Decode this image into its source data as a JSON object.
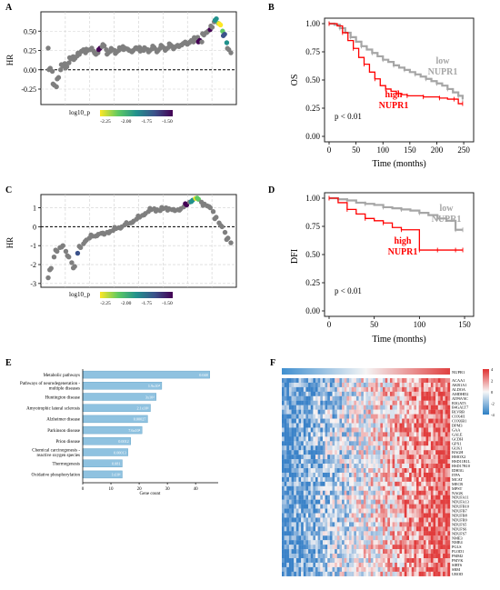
{
  "panels": {
    "A": {
      "letter": "A"
    },
    "B": {
      "letter": "B"
    },
    "C": {
      "letter": "C"
    },
    "D": {
      "letter": "D"
    },
    "E": {
      "letter": "E"
    },
    "F": {
      "letter": "F"
    }
  },
  "colorbar": {
    "title": "log10_p",
    "ticks": [
      "-2.25",
      "-2.00",
      "-1.75",
      "-1.50"
    ],
    "colors": [
      "#fde725",
      "#5ec962",
      "#21918c",
      "#3b528b",
      "#440154"
    ]
  },
  "chart_data": [
    {
      "id": "A",
      "type": "scatter",
      "ylabel": "HR",
      "ylim": [
        -0.45,
        0.75
      ],
      "yticks": [
        "0.50",
        "0.25",
        "0.00",
        "-0.25"
      ],
      "ytick_values": [
        0.5,
        0.25,
        0.0,
        -0.25
      ],
      "reference_line": 0,
      "points_y": [
        0.28,
        0.02,
        -0.02,
        -0.2,
        -0.22,
        -0.1,
        0.0,
        0.05,
        0.08,
        0.04,
        0.09,
        0.14,
        0.17,
        0.15,
        0.18,
        0.2,
        0.24,
        0.26,
        0.22,
        0.25,
        0.26,
        0.28,
        0.24,
        0.2,
        0.22,
        0.28,
        0.3,
        0.31,
        0.26,
        0.22,
        0.24,
        0.26,
        0.25,
        0.23,
        0.25,
        0.27,
        0.3,
        0.28,
        0.27,
        0.25,
        0.24,
        0.25,
        0.28,
        0.27,
        0.29,
        0.26,
        0.25,
        0.27,
        0.26,
        0.25,
        0.27,
        0.29,
        0.26,
        0.25,
        0.28,
        0.3,
        0.28,
        0.27,
        0.29,
        0.32,
        0.3,
        0.29,
        0.31,
        0.3,
        0.32,
        0.34,
        0.36,
        0.33,
        0.35,
        0.38,
        0.36,
        0.4,
        0.42,
        0.38,
        0.36,
        0.45,
        0.48,
        0.5,
        0.52,
        0.55,
        0.62,
        0.66,
        0.6,
        0.58,
        0.5,
        0.46,
        0.35,
        0.26,
        0.22
      ]
    },
    {
      "id": "B",
      "type": "line",
      "xlabel": "Time (months)",
      "ylabel": "OS",
      "xlim": [
        0,
        260
      ],
      "ylim": [
        0,
        1
      ],
      "xticks": [
        "0",
        "50",
        "100",
        "150",
        "200",
        "250"
      ],
      "xtick_values": [
        0,
        50,
        100,
        150,
        200,
        250
      ],
      "yticks": [
        "1.00",
        "0.75",
        "0.50",
        "0.25",
        "0.00"
      ],
      "ytick_values": [
        1,
        0.75,
        0.5,
        0.25,
        0
      ],
      "annotation": "p < 0.01",
      "series": [
        {
          "name": "low NUPR1",
          "label_lines": [
            "low",
            "NUPR1"
          ],
          "color": "#a6a6a6",
          "x": [
            0,
            10,
            20,
            30,
            40,
            50,
            60,
            70,
            80,
            90,
            100,
            110,
            120,
            130,
            140,
            150,
            160,
            170,
            180,
            190,
            200,
            210,
            220,
            230,
            240,
            248
          ],
          "y": [
            1,
            0.99,
            0.96,
            0.92,
            0.88,
            0.84,
            0.8,
            0.77,
            0.74,
            0.71,
            0.68,
            0.66,
            0.63,
            0.61,
            0.59,
            0.57,
            0.55,
            0.53,
            0.51,
            0.49,
            0.47,
            0.45,
            0.42,
            0.39,
            0.36,
            0.33
          ]
        },
        {
          "name": "high NUPR1",
          "label_lines": [
            "high",
            "NUPR1"
          ],
          "color": "#ff0000",
          "x": [
            0,
            15,
            25,
            35,
            45,
            55,
            65,
            75,
            85,
            95,
            105,
            115,
            125,
            135,
            145,
            160,
            175,
            190,
            205,
            220,
            232,
            240,
            248
          ],
          "y": [
            1,
            0.98,
            0.92,
            0.85,
            0.78,
            0.7,
            0.64,
            0.57,
            0.51,
            0.45,
            0.42,
            0.4,
            0.38,
            0.37,
            0.36,
            0.36,
            0.35,
            0.35,
            0.34,
            0.33,
            0.33,
            0.29,
            0.29
          ]
        }
      ]
    },
    {
      "id": "C",
      "type": "scatter",
      "ylabel": "HR",
      "ylim": [
        -3.2,
        1.7
      ],
      "yticks": [
        "1",
        "0",
        "-1",
        "-2",
        "-3"
      ],
      "ytick_values": [
        1,
        0,
        -1,
        -2,
        -3
      ],
      "reference_line": 0,
      "points_y": [
        -2.7,
        -2.2,
        -1.6,
        -1.3,
        -1.1,
        -1.0,
        -1.3,
        -1.6,
        -1.9,
        -2.1,
        -1.4,
        -1.1,
        -0.9,
        -0.7,
        -0.6,
        -0.5,
        -0.5,
        -0.4,
        -0.35,
        -0.4,
        -0.3,
        -0.25,
        -0.2,
        -0.1,
        -0.05,
        0.0,
        0.1,
        0.15,
        0.2,
        0.3,
        0.4,
        0.5,
        0.6,
        0.7,
        0.8,
        0.9,
        0.95,
        0.9,
        0.85,
        0.95,
        1.0,
        0.95,
        0.9,
        0.85,
        0.9,
        0.95,
        1.05,
        1.15,
        1.3,
        1.4,
        1.5,
        1.45,
        1.3,
        1.2,
        1.1,
        1.0,
        0.8,
        0.5,
        0.2,
        0.0,
        -0.3,
        -0.6,
        -0.85
      ]
    },
    {
      "id": "D",
      "type": "line",
      "xlabel": "Time (months)",
      "ylabel": "DFI",
      "xlim": [
        0,
        155
      ],
      "ylim": [
        0,
        1
      ],
      "xticks": [
        "0",
        "50",
        "100",
        "150"
      ],
      "xtick_values": [
        0,
        50,
        100,
        150
      ],
      "yticks": [
        "1.00",
        "0.75",
        "0.50",
        "0.25",
        "0.00"
      ],
      "ytick_values": [
        1,
        0.75,
        0.5,
        0.25,
        0
      ],
      "annotation": "p < 0.01",
      "series": [
        {
          "name": "low NUPR1",
          "label_lines": [
            "low",
            "NUPR1"
          ],
          "color": "#a6a6a6",
          "x": [
            0,
            10,
            20,
            30,
            40,
            50,
            60,
            70,
            80,
            90,
            100,
            110,
            120,
            130,
            140,
            148
          ],
          "y": [
            1,
            0.99,
            0.98,
            0.96,
            0.95,
            0.94,
            0.92,
            0.91,
            0.9,
            0.89,
            0.87,
            0.85,
            0.82,
            0.8,
            0.72,
            0.72
          ]
        },
        {
          "name": "high NUPR1",
          "label_lines": [
            "high",
            "NUPR1"
          ],
          "color": "#ff0000",
          "x": [
            0,
            10,
            20,
            30,
            40,
            50,
            60,
            70,
            80,
            90,
            100,
            110,
            120,
            130,
            140,
            148
          ],
          "y": [
            1,
            0.96,
            0.9,
            0.86,
            0.82,
            0.8,
            0.78,
            0.74,
            0.72,
            0.72,
            0.54,
            0.54,
            0.54,
            0.54,
            0.54,
            0.54
          ]
        }
      ]
    },
    {
      "id": "E",
      "type": "bar",
      "xlabel": "Gene count",
      "xlim": [
        0,
        48
      ],
      "xticks": [
        "0",
        "10",
        "20",
        "30",
        "40"
      ],
      "xtick_values": [
        0,
        10,
        20,
        30,
        40
      ],
      "categories": [
        [
          "Metabolic pathways"
        ],
        [
          "Pathways of neurodegeneration -",
          "multiple diseases"
        ],
        [
          "Huntington disease"
        ],
        [
          "Amyotrophic lateral sclerosis"
        ],
        [
          "Alzheimer disease"
        ],
        [
          "Parkinson disease"
        ],
        [
          "Prion disease"
        ],
        [
          "Chemical carcinogenesis -",
          "reactive oxygen species"
        ],
        [
          "Thermogenesis"
        ],
        [
          "Oxidative phosphorylation"
        ]
      ],
      "values": [
        45,
        28,
        26,
        24,
        23,
        21,
        17,
        16,
        14,
        14
      ],
      "bar_labels": [
        "0.048",
        "1.9x10⁴",
        "3x10⁴",
        "2.1x10⁴",
        "0.00027",
        "7.6x10⁴",
        "0.0012",
        "0.00013",
        "0.081",
        "1x10⁴"
      ],
      "bar_color": "#8fc2e0"
    },
    {
      "id": "F",
      "type": "heatmap",
      "top_row_label": "NUPR1",
      "row_labels": [
        "ACAA1",
        "AKR1A1",
        "ALDOA",
        "AMDHD2",
        "ATP6V0C",
        "B3GAT3",
        "B4GALT7",
        "BLVRB",
        "COX4I1",
        "COX6B1",
        "DPM3",
        "GAA",
        "GALE",
        "GCDH",
        "GPX1",
        "GUK1",
        "HAGH",
        "HMOX2",
        "HSD11B1L",
        "HSD17B10",
        "IDH3G",
        "ITPA",
        "MCAT",
        "MECR",
        "MPST",
        "NAGK",
        "NDUFA11",
        "NDUFA13",
        "NDUFB10",
        "NDUFB7",
        "NDUFB8",
        "NDUFB9",
        "NDUFS5",
        "NDUFS6",
        "NDUFS7",
        "NME3",
        "NME4",
        "PGLS",
        "PLOD1",
        "PMM2",
        "PMVK",
        "SIRT6",
        "SRM",
        "UROD"
      ],
      "legend_ticks": [
        "4",
        "2",
        "0",
        "-2",
        "-4"
      ],
      "legend_tick_values": [
        4,
        2,
        0,
        -2,
        -4
      ]
    }
  ]
}
